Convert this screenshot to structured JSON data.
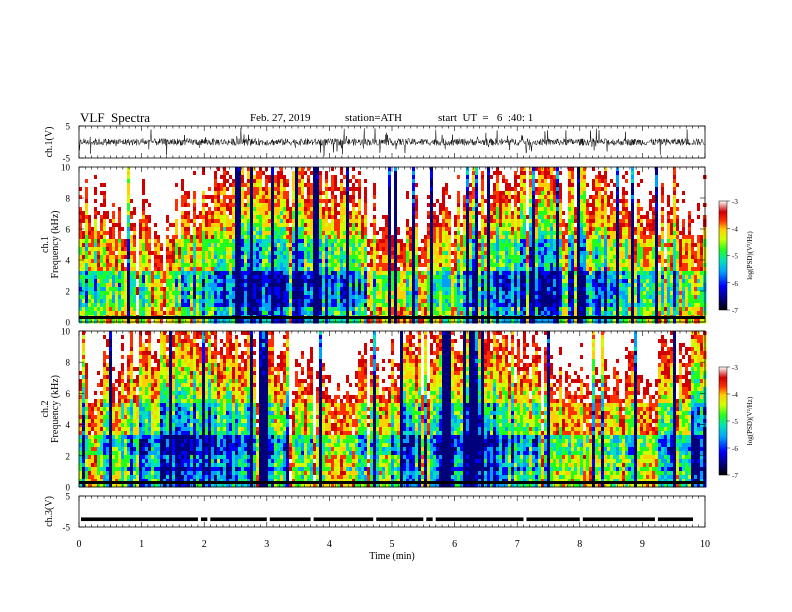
{
  "header": {
    "title": "VLF  Spectra",
    "date": "Feb. 27, 2019",
    "station": "station=ATH",
    "start": "start  UT  =   6  :40: 1"
  },
  "chart_data": [
    {
      "type": "line",
      "name": "ch1-waveform",
      "ylabel": "ch.1(V)",
      "ylim": [
        -5,
        5
      ],
      "yticks": [
        "5",
        "-5"
      ],
      "xlim": [
        0,
        10
      ]
    },
    {
      "type": "heatmap",
      "name": "ch1-spectrogram",
      "ylabel_top": "ch.1",
      "ylabel": "Frequency (kHz)",
      "ylim": [
        0,
        10
      ],
      "yticks": [
        "0",
        "2",
        "4",
        "6",
        "8",
        "10"
      ],
      "xlim": [
        0,
        10
      ],
      "colorbar": {
        "label": "log(PSD)(V²/Hz)",
        "range": [
          -7,
          -3
        ],
        "ticks": [
          "-3",
          "-4",
          "-5",
          "-6",
          "-7"
        ]
      }
    },
    {
      "type": "heatmap",
      "name": "ch2-spectrogram",
      "ylabel_top": "ch.2",
      "ylabel": "Frequency (kHz)",
      "ylim": [
        0,
        10
      ],
      "yticks": [
        "0",
        "2",
        "4",
        "6",
        "8",
        "10"
      ],
      "xlim": [
        0,
        10
      ],
      "colorbar": {
        "label": "log(PSD)(V²/Hz)",
        "range": [
          -7,
          -3
        ],
        "ticks": [
          "-3",
          "-4",
          "-5",
          "-6",
          "-7"
        ]
      }
    },
    {
      "type": "line",
      "name": "ch3-signal",
      "ylabel": "ch.3(V)",
      "ylim": [
        -5,
        5
      ],
      "yticks": [
        "5",
        "-5"
      ],
      "xlim": [
        0,
        10
      ]
    }
  ],
  "xaxis": {
    "label": "Time  (min)",
    "ticks": [
      "0",
      "1",
      "2",
      "3",
      "4",
      "5",
      "6",
      "7",
      "8",
      "9",
      "10"
    ]
  },
  "colors": {
    "scale": [
      "#00007a",
      "#0000ff",
      "#00a0ff",
      "#00e0c0",
      "#20ff20",
      "#d0ff00",
      "#ffd000",
      "#ff3000",
      "#d00000",
      "#ffffff"
    ]
  }
}
